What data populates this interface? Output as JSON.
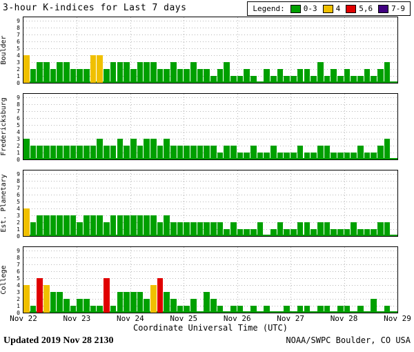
{
  "title": "3-hour K-indices for Last 7 days",
  "legend": {
    "label": "Legend:",
    "items": [
      {
        "name": "green",
        "label": "0-3",
        "color": "#00A000"
      },
      {
        "name": "yellow",
        "label": "4",
        "color": "#F0C000"
      },
      {
        "name": "red",
        "label": "5,6",
        "color": "#E00000"
      },
      {
        "name": "purple",
        "label": "7-9",
        "color": "#400080"
      }
    ]
  },
  "footer": {
    "updated_label": "Updated",
    "updated_value": "2019 Nov 28 2130",
    "credit": "NOAA/SWPC Boulder, CO USA"
  },
  "chart_data": {
    "type": "bar",
    "title": "3-hour K-indices for Last 7 days",
    "xlabel": "Coordinate Universal Time (UTC)",
    "ylim": [
      0,
      9
    ],
    "y_ticks": [
      0,
      1,
      2,
      3,
      4,
      5,
      6,
      7,
      8,
      9
    ],
    "x_ticks": [
      "Nov 22",
      "Nov 23",
      "Nov 24",
      "Nov 25",
      "Nov 26",
      "Nov 27",
      "Nov 28",
      "Nov 29"
    ],
    "interval_hours": 3,
    "grid": true,
    "legend_position": "top-right",
    "colors": {
      "green": "#00A000",
      "yellow": "#F0C000",
      "red": "#E00000",
      "purple": "#400080"
    },
    "color_ranges": {
      "green": "K 0-3",
      "yellow": "K 4",
      "red": "K 5-6",
      "purple": "K 7-9"
    },
    "panels": [
      {
        "station": "Boulder",
        "values": [
          4,
          2,
          3,
          3,
          2,
          3,
          3,
          2,
          2,
          2,
          4,
          4,
          2,
          3,
          3,
          3,
          2,
          3,
          3,
          3,
          2,
          2,
          3,
          2,
          2,
          3,
          2,
          2,
          1,
          2,
          3,
          1,
          1,
          2,
          1,
          0,
          2,
          1,
          2,
          1,
          1,
          2,
          2,
          1,
          3,
          1,
          2,
          1,
          2,
          1,
          1,
          2,
          1,
          2,
          3
        ]
      },
      {
        "station": "Fredericksburg",
        "values": [
          3,
          2,
          2,
          2,
          2,
          2,
          2,
          2,
          2,
          2,
          2,
          3,
          2,
          2,
          3,
          2,
          3,
          2,
          3,
          3,
          2,
          3,
          2,
          2,
          2,
          2,
          2,
          2,
          2,
          1,
          2,
          2,
          1,
          1,
          2,
          1,
          1,
          2,
          1,
          1,
          1,
          2,
          1,
          1,
          2,
          2,
          1,
          1,
          1,
          1,
          2,
          1,
          1,
          2,
          3
        ]
      },
      {
        "station": "Est. Planetary",
        "values": [
          4,
          2,
          3,
          3,
          3,
          3,
          3,
          3,
          2,
          3,
          3,
          3,
          2,
          3,
          3,
          3,
          3,
          3,
          3,
          3,
          2,
          3,
          2,
          2,
          2,
          2,
          2,
          2,
          2,
          2,
          1,
          2,
          1,
          1,
          1,
          2,
          0,
          1,
          2,
          1,
          1,
          2,
          2,
          1,
          2,
          2,
          1,
          1,
          1,
          2,
          1,
          1,
          1,
          2,
          2
        ]
      },
      {
        "station": "College",
        "values": [
          4,
          1,
          5,
          4,
          3,
          3,
          2,
          1,
          2,
          2,
          1,
          1,
          5,
          1,
          3,
          3,
          3,
          3,
          2,
          4,
          5,
          3,
          2,
          1,
          1,
          2,
          0,
          3,
          2,
          1,
          0,
          1,
          1,
          0,
          1,
          0,
          1,
          0,
          0,
          1,
          0,
          1,
          1,
          0,
          1,
          1,
          0,
          1,
          1,
          0,
          1,
          0,
          2,
          0,
          1
        ]
      }
    ]
  }
}
